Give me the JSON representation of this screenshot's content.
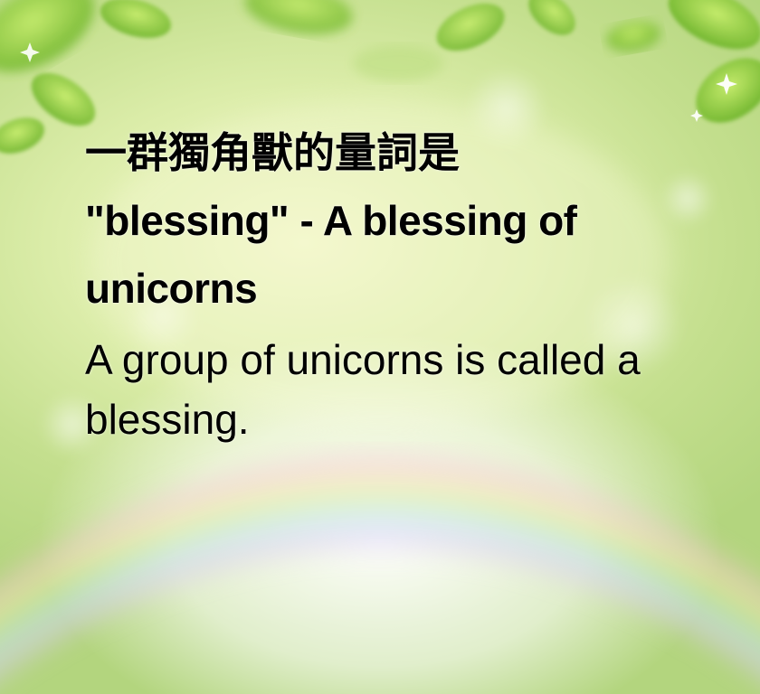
{
  "card": {
    "headline_chinese": "一群獨角獸的量詞是",
    "headline_english": "\"blessing\" - A blessing of unicorns",
    "subline": "A group of unicorns is called a blessing."
  },
  "colors": {
    "text": "#000000",
    "background_light": "#f3f7c9",
    "background_green": "#b3d57e",
    "leaf": "#8cc63f"
  }
}
